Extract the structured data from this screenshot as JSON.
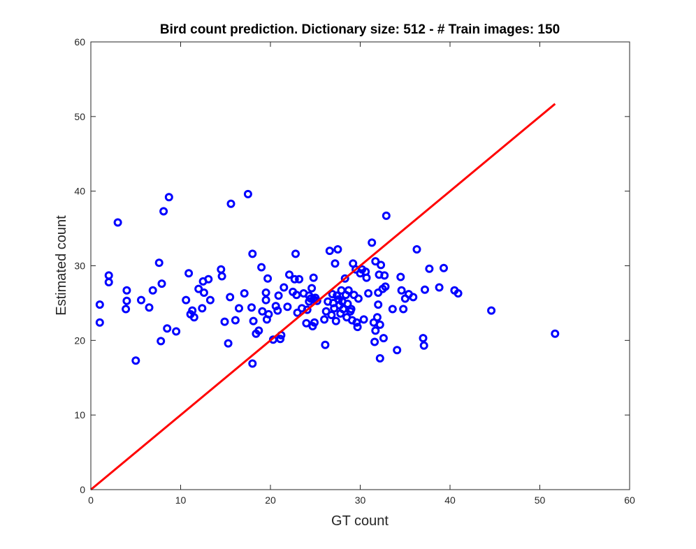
{
  "chart_data": {
    "type": "scatter",
    "title": "Bird count prediction. Dictionary size: 512 - # Train images: 150",
    "xlabel": "GT count",
    "ylabel": "Estimated count",
    "xlim": [
      0,
      60
    ],
    "ylim": [
      0,
      60
    ],
    "xticks": [
      "0",
      "10",
      "20",
      "30",
      "40",
      "50",
      "60"
    ],
    "yticks": [
      "0",
      "10",
      "20",
      "30",
      "40",
      "50",
      "60"
    ],
    "grid": false,
    "legend": "none",
    "marker_color": "#0000ff",
    "line_color": "#ff0000",
    "points": [
      [
        1,
        24.8
      ],
      [
        1,
        22.4
      ],
      [
        2,
        28.7
      ],
      [
        2,
        27.8
      ],
      [
        3,
        35.8
      ],
      [
        3.9,
        24.2
      ],
      [
        4,
        26.7
      ],
      [
        4,
        25.3
      ],
      [
        5,
        17.3
      ],
      [
        5.6,
        25.4
      ],
      [
        6.5,
        24.4
      ],
      [
        6.9,
        26.7
      ],
      [
        7.6,
        30.4
      ],
      [
        7.8,
        19.9
      ],
      [
        7.9,
        27.6
      ],
      [
        8.1,
        37.3
      ],
      [
        8.5,
        21.6
      ],
      [
        8.7,
        39.2
      ],
      [
        9.5,
        21.2
      ],
      [
        10.6,
        25.4
      ],
      [
        10.9,
        29
      ],
      [
        11.1,
        23.5
      ],
      [
        11.3,
        24
      ],
      [
        11.5,
        23.1
      ],
      [
        12,
        26.9
      ],
      [
        12.4,
        24.3
      ],
      [
        12.5,
        27.9
      ],
      [
        12.6,
        26.4
      ],
      [
        13.1,
        28.2
      ],
      [
        13.3,
        25.4
      ],
      [
        14.5,
        29.5
      ],
      [
        14.6,
        28.6
      ],
      [
        14.9,
        22.5
      ],
      [
        15.3,
        19.6
      ],
      [
        15.5,
        25.8
      ],
      [
        15.6,
        38.3
      ],
      [
        16.1,
        22.7
      ],
      [
        16.5,
        24.3
      ],
      [
        17.1,
        26.3
      ],
      [
        17.5,
        39.6
      ],
      [
        17.9,
        24.4
      ],
      [
        18,
        16.9
      ],
      [
        18,
        31.6
      ],
      [
        18.1,
        22.6
      ],
      [
        18.4,
        20.9
      ],
      [
        18.7,
        21.3
      ],
      [
        19,
        29.8
      ],
      [
        19.1,
        23.9
      ],
      [
        19.5,
        26.4
      ],
      [
        19.5,
        25.4
      ],
      [
        19.6,
        22.8
      ],
      [
        19.7,
        28.3
      ],
      [
        19.8,
        23.5
      ],
      [
        20.3,
        20.1
      ],
      [
        20.6,
        24.6
      ],
      [
        20.8,
        24
      ],
      [
        20.9,
        26
      ],
      [
        21.1,
        20.2
      ],
      [
        21.2,
        20.7
      ],
      [
        21.5,
        27.1
      ],
      [
        21.9,
        24.5
      ],
      [
        22.1,
        28.8
      ],
      [
        22.5,
        26.5
      ],
      [
        22.7,
        28.2
      ],
      [
        22.8,
        31.6
      ],
      [
        22.9,
        26.1
      ],
      [
        23,
        23.7
      ],
      [
        23.2,
        28.2
      ],
      [
        23.5,
        24.3
      ],
      [
        23.7,
        26.3
      ],
      [
        24,
        22.3
      ],
      [
        24.1,
        24.1
      ],
      [
        24.3,
        26
      ],
      [
        24.3,
        25.2
      ],
      [
        24.5,
        25.6
      ],
      [
        24.6,
        27
      ],
      [
        24.7,
        21.9
      ],
      [
        24.8,
        25.5
      ],
      [
        24.8,
        28.4
      ],
      [
        24.9,
        22.4
      ],
      [
        25,
        25.7
      ],
      [
        25.2,
        25.3
      ],
      [
        26,
        22.8
      ],
      [
        26.1,
        19.4
      ],
      [
        26.2,
        23.9
      ],
      [
        26.4,
        25.2
      ],
      [
        26.6,
        32
      ],
      [
        26.8,
        23.4
      ],
      [
        26.9,
        26.2
      ],
      [
        27,
        25
      ],
      [
        27.1,
        24.3
      ],
      [
        27.2,
        30.3
      ],
      [
        27.3,
        22.6
      ],
      [
        27.4,
        26
      ],
      [
        27.5,
        32.2
      ],
      [
        27.6,
        25.5
      ],
      [
        27.7,
        24.7
      ],
      [
        27.8,
        23.6
      ],
      [
        27.9,
        26.7
      ],
      [
        28,
        25.2
      ],
      [
        28.1,
        24.2
      ],
      [
        28.3,
        28.3
      ],
      [
        28.4,
        26.1
      ],
      [
        28.5,
        23.1
      ],
      [
        28.6,
        24.9
      ],
      [
        28.7,
        26.7
      ],
      [
        28.9,
        23.9
      ],
      [
        29,
        24.2
      ],
      [
        29.1,
        22.7
      ],
      [
        29.2,
        30.3
      ],
      [
        29.3,
        26.1
      ],
      [
        29.5,
        29.5
      ],
      [
        29.6,
        22.4
      ],
      [
        29.7,
        21.8
      ],
      [
        29.8,
        25.6
      ],
      [
        30,
        29
      ],
      [
        30.2,
        29.5
      ],
      [
        30.4,
        22.8
      ],
      [
        30.6,
        29.2
      ],
      [
        30.7,
        28.4
      ],
      [
        30.9,
        26.3
      ],
      [
        31.3,
        33.1
      ],
      [
        31.5,
        22.4
      ],
      [
        31.6,
        19.8
      ],
      [
        31.7,
        30.6
      ],
      [
        31.7,
        21.3
      ],
      [
        31.9,
        23.1
      ],
      [
        32,
        26.4
      ],
      [
        32,
        24.8
      ],
      [
        32.1,
        28.8
      ],
      [
        32.2,
        17.6
      ],
      [
        32.2,
        22.1
      ],
      [
        32.3,
        30.1
      ],
      [
        32.5,
        26.9
      ],
      [
        32.6,
        20.3
      ],
      [
        32.7,
        28.7
      ],
      [
        32.8,
        27.2
      ],
      [
        32.9,
        36.7
      ],
      [
        33.6,
        24.2
      ],
      [
        34.1,
        18.7
      ],
      [
        34.5,
        28.5
      ],
      [
        34.6,
        26.7
      ],
      [
        34.8,
        24.2
      ],
      [
        35,
        25.6
      ],
      [
        35.4,
        26.2
      ],
      [
        35.9,
        25.8
      ],
      [
        36.3,
        32.2
      ],
      [
        37,
        20.3
      ],
      [
        37.1,
        19.3
      ],
      [
        37.2,
        26.8
      ],
      [
        37.7,
        29.6
      ],
      [
        38.8,
        27.1
      ],
      [
        39.3,
        29.7
      ],
      [
        40.5,
        26.7
      ],
      [
        40.9,
        26.3
      ],
      [
        44.6,
        24
      ],
      [
        51.7,
        20.9
      ]
    ],
    "reference_line": [
      [
        0,
        0
      ],
      [
        51.7,
        51.7
      ]
    ]
  }
}
